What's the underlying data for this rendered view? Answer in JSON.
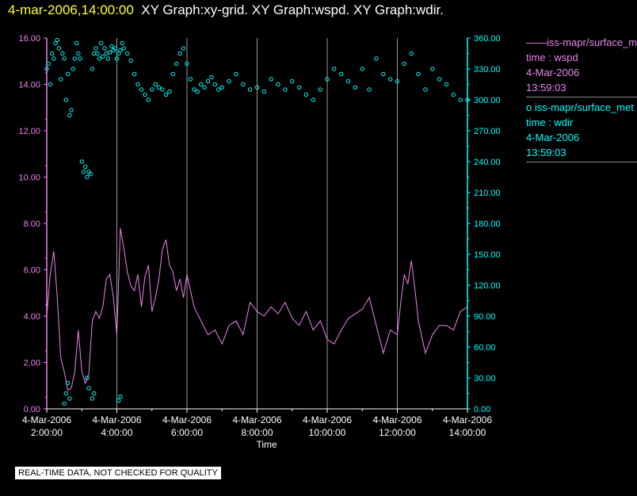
{
  "header": {
    "datetime": "4-mar-2006,14:00:00",
    "graphs": "XY Graph:xy-grid.  XY Graph:wspd.  XY Graph:wdir."
  },
  "legend": [
    {
      "marker": "——",
      "source": "iss-mapr/surface_met",
      "field": "time : wspd",
      "date": "4-Mar-2006",
      "time": "13:59:03",
      "color": "#ee82ee"
    },
    {
      "marker": "o",
      "source": "iss-mapr/surface_met",
      "field": "time : wdir",
      "date": "4-Mar-2006",
      "time": "13:59:03",
      "color": "#00ffff"
    }
  ],
  "footer": "REAL-TIME DATA, NOT CHECKED FOR QUALITY",
  "chart_data": {
    "type": "line",
    "xlabel": "Time",
    "x_ticks": [
      {
        "date": "4-Mar-2006",
        "time": "2:00:00",
        "h": 2
      },
      {
        "date": "4-Mar-2006",
        "time": "4:00:00",
        "h": 4
      },
      {
        "date": "4-Mar-2006",
        "time": "6:00:00",
        "h": 6
      },
      {
        "date": "4-Mar-2006",
        "time": "8:00:00",
        "h": 8
      },
      {
        "date": "4-Mar-2006",
        "time": "10:00:00",
        "h": 10
      },
      {
        "date": "4-Mar-2006",
        "time": "12:00:00",
        "h": 12
      },
      {
        "date": "4-Mar-2006",
        "time": "14:00:00",
        "h": 14
      }
    ],
    "xlim": [
      2,
      14
    ],
    "grid": "vertical",
    "y_left": {
      "ylim": [
        0,
        16
      ],
      "ticks": [
        "0.00",
        "2.00",
        "4.00",
        "6.00",
        "8.00",
        "10.00",
        "12.00",
        "14.00",
        "16.00"
      ],
      "color": "#ee82ee"
    },
    "y_right": {
      "ylim": [
        0,
        360
      ],
      "ticks": [
        "0.00",
        "30.00",
        "60.00",
        "90.00",
        "120.00",
        "150.00",
        "180.00",
        "210.00",
        "240.00",
        "270.00",
        "300.00",
        "330.00",
        "360.00"
      ],
      "color": "#00ffff"
    },
    "series": [
      {
        "field": "wspd",
        "axis": "left",
        "style": "line",
        "color": "#ee82ee",
        "x": [
          2.0,
          2.1,
          2.2,
          2.3,
          2.4,
          2.5,
          2.6,
          2.7,
          2.8,
          2.9,
          3.0,
          3.1,
          3.2,
          3.3,
          3.4,
          3.5,
          3.6,
          3.7,
          3.8,
          3.9,
          4.0,
          4.1,
          4.2,
          4.3,
          4.4,
          4.5,
          4.6,
          4.7,
          4.8,
          4.9,
          5.0,
          5.1,
          5.2,
          5.3,
          5.4,
          5.5,
          5.6,
          5.7,
          5.8,
          5.9,
          6.0,
          6.2,
          6.4,
          6.6,
          6.8,
          7.0,
          7.2,
          7.4,
          7.6,
          7.8,
          8.0,
          8.2,
          8.4,
          8.6,
          8.8,
          9.0,
          9.2,
          9.4,
          9.6,
          9.8,
          10.0,
          10.2,
          10.4,
          10.6,
          10.8,
          11.0,
          11.2,
          11.4,
          11.6,
          11.8,
          12.0,
          12.1,
          12.2,
          12.3,
          12.4,
          12.5,
          12.6,
          12.8,
          13.0,
          13.2,
          13.4,
          13.6,
          13.8,
          14.0
        ],
        "y": [
          4.0,
          5.8,
          6.8,
          4.8,
          2.2,
          1.6,
          0.8,
          0.9,
          1.6,
          3.4,
          1.6,
          1.1,
          1.5,
          3.8,
          4.2,
          3.9,
          4.4,
          5.6,
          5.8,
          4.8,
          3.2,
          7.8,
          6.9,
          5.9,
          5.3,
          5.1,
          5.8,
          4.4,
          5.7,
          6.2,
          4.2,
          4.8,
          5.6,
          6.9,
          7.3,
          6.2,
          5.9,
          5.1,
          5.6,
          4.8,
          5.8,
          4.4,
          3.8,
          3.2,
          3.4,
          2.8,
          3.6,
          3.8,
          3.2,
          4.6,
          4.2,
          4.0,
          4.4,
          4.1,
          4.6,
          3.9,
          3.6,
          4.2,
          3.4,
          3.8,
          3.0,
          2.8,
          3.4,
          3.9,
          4.1,
          4.3,
          4.8,
          3.6,
          2.4,
          3.4,
          3.2,
          4.6,
          5.8,
          5.4,
          6.4,
          5.2,
          3.8,
          2.4,
          3.2,
          3.6,
          3.6,
          3.4,
          4.2,
          4.4
        ]
      },
      {
        "field": "wdir",
        "axis": "right",
        "style": "scatter",
        "color": "#00ffff",
        "x": [
          2.0,
          2.05,
          2.1,
          2.15,
          2.2,
          2.25,
          2.3,
          2.35,
          2.4,
          2.45,
          2.5,
          2.55,
          2.6,
          2.65,
          2.7,
          2.75,
          2.8,
          2.85,
          2.9,
          2.95,
          3.0,
          3.05,
          3.1,
          3.15,
          3.2,
          3.25,
          3.3,
          3.35,
          3.4,
          3.45,
          3.5,
          3.55,
          3.6,
          3.65,
          3.7,
          3.75,
          3.8,
          3.85,
          3.9,
          3.95,
          4.0,
          4.05,
          4.1,
          4.15,
          4.2,
          4.3,
          4.4,
          4.5,
          4.6,
          4.7,
          4.8,
          4.9,
          5.0,
          5.1,
          5.2,
          5.3,
          5.4,
          5.5,
          5.6,
          5.7,
          5.8,
          5.9,
          6.0,
          6.1,
          6.2,
          6.3,
          6.4,
          6.5,
          6.6,
          6.7,
          6.8,
          6.9,
          7.0,
          7.2,
          7.4,
          7.6,
          7.8,
          8.0,
          8.2,
          8.4,
          8.6,
          8.8,
          9.0,
          9.2,
          9.4,
          9.6,
          9.8,
          10.0,
          10.2,
          10.4,
          10.6,
          10.8,
          11.0,
          11.2,
          11.4,
          11.6,
          11.8,
          12.0,
          12.2,
          12.4,
          12.6,
          12.8,
          13.0,
          13.2,
          13.4,
          13.6,
          13.8,
          14.0,
          2.5,
          2.55,
          2.6,
          2.65,
          3.15,
          3.2,
          3.3,
          3.35,
          4.05,
          4.1
        ],
        "y": [
          330,
          335,
          315,
          345,
          340,
          355,
          358,
          350,
          320,
          345,
          340,
          300,
          325,
          285,
          290,
          330,
          340,
          355,
          345,
          340,
          240,
          230,
          235,
          225,
          230,
          228,
          330,
          345,
          350,
          345,
          340,
          355,
          342,
          350,
          345,
          340,
          346,
          352,
          348,
          350,
          340,
          345,
          348,
          355,
          350,
          345,
          338,
          325,
          315,
          310,
          305,
          300,
          310,
          315,
          312,
          310,
          305,
          308,
          325,
          335,
          345,
          350,
          335,
          320,
          310,
          308,
          315,
          312,
          318,
          322,
          315,
          310,
          312,
          318,
          325,
          315,
          310,
          312,
          308,
          320,
          315,
          310,
          318,
          312,
          305,
          300,
          310,
          320,
          330,
          325,
          318,
          312,
          330,
          310,
          340,
          325,
          320,
          318,
          335,
          345,
          325,
          310,
          330,
          320,
          315,
          305,
          300,
          300,
          5,
          15,
          25,
          10,
          30,
          20,
          10,
          15,
          8,
          12
        ]
      }
    ]
  }
}
